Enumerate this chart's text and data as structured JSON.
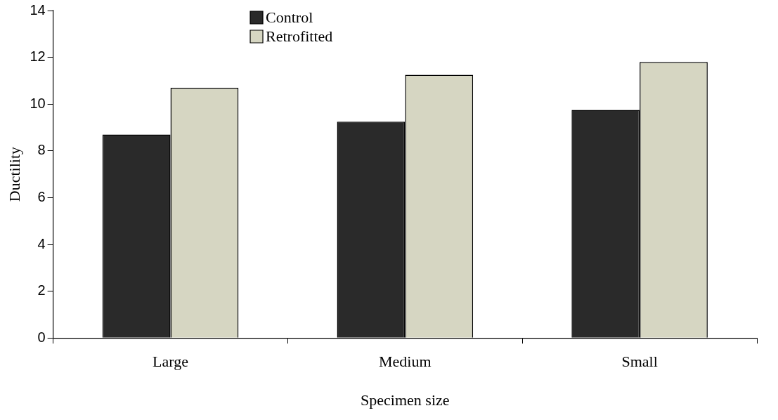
{
  "chart_data": {
    "type": "bar",
    "xlabel": "Specimen size",
    "ylabel": "Ductility",
    "categories": [
      "Large",
      "Medium",
      "Small"
    ],
    "series": [
      {
        "name": "Control",
        "color": "#2a2a2a",
        "values": [
          8.7,
          9.25,
          9.75
        ]
      },
      {
        "name": "Retrofitted",
        "color": "#d6d6c2",
        "values": [
          10.7,
          11.25,
          11.8
        ]
      }
    ],
    "ylim": [
      0,
      14
    ],
    "yticks": [
      0,
      2,
      4,
      6,
      8,
      10,
      12,
      14
    ],
    "grid": false,
    "legend": "top"
  }
}
